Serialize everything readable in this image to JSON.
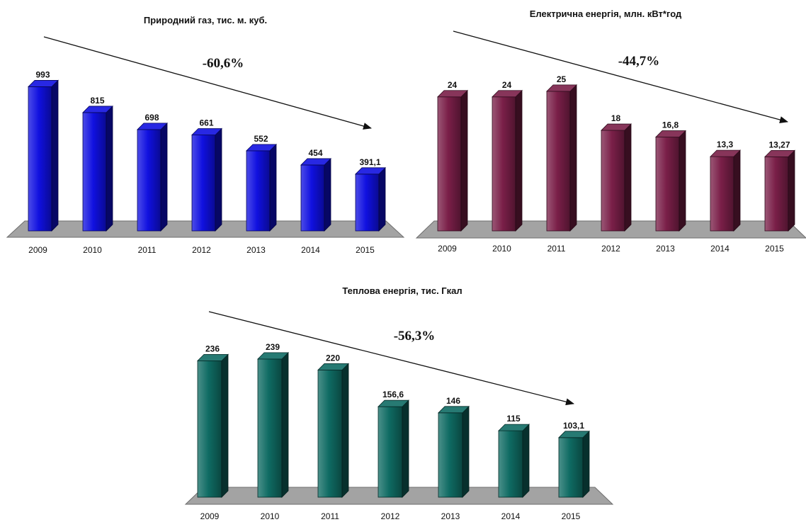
{
  "chart_data": [
    {
      "type": "bar",
      "title": "Природний газ, тис. м. куб.",
      "annotation": "-60,6%",
      "trend_arrow": true,
      "categories": [
        "2009",
        "2010",
        "2011",
        "2012",
        "2013",
        "2014",
        "2015"
      ],
      "values": [
        993,
        815,
        698,
        661,
        552,
        454,
        391.1
      ],
      "value_labels": [
        "993",
        "815",
        "698",
        "661",
        "552",
        "454",
        "391,1"
      ],
      "color": "#1010e0",
      "ylim": [
        0,
        1000
      ]
    },
    {
      "type": "bar",
      "title": "Електрична енергія, млн. кВт*год",
      "annotation": "-44,7%",
      "trend_arrow": true,
      "categories": [
        "2009",
        "2010",
        "2011",
        "2012",
        "2013",
        "2014",
        "2015"
      ],
      "values": [
        24,
        24,
        25,
        18,
        16.8,
        13.3,
        13.27
      ],
      "value_labels": [
        "24",
        "24",
        "25",
        "18",
        "16,8",
        "13,3",
        "13,27"
      ],
      "color": "#7a1f48",
      "ylim": [
        0,
        26
      ]
    },
    {
      "type": "bar",
      "title": "Теплова енергія, тис. Гкал",
      "annotation": "-56,3%",
      "trend_arrow": true,
      "categories": [
        "2009",
        "2010",
        "2011",
        "2012",
        "2013",
        "2014",
        "2015"
      ],
      "values": [
        236,
        239,
        220,
        156.6,
        146,
        115,
        103.1
      ],
      "value_labels": [
        "236",
        "239",
        "220",
        "156,6",
        "146",
        "115",
        "103,1"
      ],
      "color": "#0f6b63",
      "ylim": [
        0,
        245
      ]
    }
  ]
}
